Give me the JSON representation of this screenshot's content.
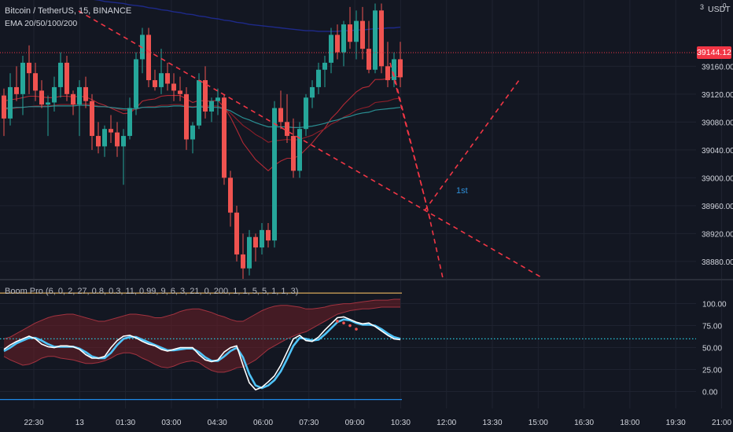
{
  "header": {
    "symbol_line": "Bitcoin / TetherUS, 15, BINANCE",
    "indicator_line": "EMA 20/50/100/200",
    "oscillator_line": "Boom Pro (6, 0, 2, 27, 0.8, 0.3, 11, 0.99, 9, 6, 3, 21, 0, 200, 1, 1, 5, 5, 1, 1, 3)"
  },
  "price_axis": {
    "unit": "USDT",
    "unit_sup": "0",
    "top_label": "3",
    "current_price": "39144.12",
    "current_price_color": "#f23645"
  },
  "annotation": {
    "label": "1st",
    "color": "#2f8fd8"
  },
  "colors": {
    "background": "#131722",
    "up": "#26a69a",
    "down": "#ef5350",
    "drawing": "#f23645",
    "ema200": "#1e2a8a",
    "osc_fast": "#ffffff",
    "osc_slow": "#4fc3f7",
    "dotted_level": "#26c6da",
    "upper_band": "#d8a85a",
    "lower_band": "#1e88e5"
  },
  "chart_data": [
    {
      "type": "candlestick",
      "title": "Bitcoin / TetherUS, 15, BINANCE",
      "ylabel": "USDT",
      "y_ticks": [
        39160,
        39120,
        39080,
        39040,
        39000,
        38960,
        38920,
        38880
      ],
      "ylim": [
        38855,
        39255
      ],
      "x_ticks": [
        "22:30",
        "13",
        "01:30",
        "03:00",
        "04:30",
        "06:00",
        "07:30",
        "09:00",
        "10:30",
        "12:00",
        "13:30",
        "15:00",
        "16:30",
        "18:00",
        "19:30",
        "21:00"
      ],
      "current_price": 39144.12,
      "grid": true,
      "candles": [
        [
          39118,
          39128,
          39060,
          39085
        ],
        [
          39085,
          39150,
          39075,
          39130
        ],
        [
          39130,
          39160,
          39110,
          39120
        ],
        [
          39120,
          39175,
          39090,
          39165
        ],
        [
          39165,
          39190,
          39120,
          39150
        ],
        [
          39150,
          39165,
          39110,
          39125
        ],
        [
          39125,
          39140,
          39100,
          39105
        ],
        [
          39105,
          39118,
          39060,
          39108
        ],
        [
          39108,
          39145,
          39095,
          39130
        ],
        [
          39130,
          39180,
          39115,
          39165
        ],
        [
          39165,
          39175,
          39110,
          39120
        ],
        [
          39120,
          39125,
          39090,
          39105
        ],
        [
          39105,
          39140,
          39060,
          39130
        ],
        [
          39130,
          39145,
          39100,
          39110
        ],
        [
          39110,
          39120,
          39040,
          39060
        ],
        [
          39060,
          39080,
          39035,
          39045
        ],
        [
          39045,
          39075,
          39030,
          39070
        ],
        [
          39070,
          39090,
          39050,
          39065
        ],
        [
          39065,
          39080,
          39030,
          39045
        ],
        [
          39045,
          39070,
          38990,
          39060
        ],
        [
          39060,
          39115,
          39055,
          39100
        ],
        [
          39100,
          39180,
          39090,
          39170
        ],
        [
          39170,
          39215,
          39150,
          39205
        ],
        [
          39205,
          39215,
          39130,
          39140
        ],
        [
          39140,
          39155,
          39125,
          39130
        ],
        [
          39130,
          39185,
          39120,
          39150
        ],
        [
          39150,
          39165,
          39125,
          39135
        ],
        [
          39135,
          39150,
          39110,
          39125
        ],
        [
          39125,
          39145,
          39110,
          39120
        ],
        [
          39120,
          39130,
          39040,
          39055
        ],
        [
          39055,
          39080,
          39035,
          39075
        ],
        [
          39075,
          39150,
          39070,
          39140
        ],
        [
          39140,
          39160,
          39085,
          39095
        ],
        [
          39095,
          39115,
          39080,
          39110
        ],
        [
          39110,
          39128,
          39090,
          39115
        ],
        [
          39115,
          39120,
          38990,
          39000
        ],
        [
          39000,
          39010,
          38930,
          38950
        ],
        [
          38950,
          38960,
          38880,
          38890
        ],
        [
          38890,
          38920,
          38855,
          38870
        ],
        [
          38870,
          38925,
          38860,
          38915
        ],
        [
          38915,
          38920,
          38880,
          38900
        ],
        [
          38900,
          38935,
          38890,
          38925
        ],
        [
          38925,
          38935,
          38900,
          38910
        ],
        [
          38910,
          39110,
          38900,
          39100
        ],
        [
          39100,
          39125,
          39070,
          39080
        ],
        [
          39080,
          39120,
          39050,
          39060
        ],
        [
          39060,
          39085,
          39000,
          39010
        ],
        [
          39010,
          39080,
          39000,
          39070
        ],
        [
          39070,
          39120,
          39060,
          39115
        ],
        [
          39115,
          39140,
          39100,
          39130
        ],
        [
          39130,
          39165,
          39120,
          39155
        ],
        [
          39155,
          39175,
          39130,
          39165
        ],
        [
          39165,
          39215,
          39150,
          39205
        ],
        [
          39205,
          39220,
          39170,
          39180
        ],
        [
          39180,
          39225,
          39160,
          39220
        ],
        [
          39220,
          39245,
          39185,
          39195
        ],
        [
          39195,
          39240,
          39170,
          39225
        ],
        [
          39225,
          39245,
          39170,
          39185
        ],
        [
          39185,
          39225,
          39150,
          39155
        ],
        [
          39155,
          39250,
          39150,
          39240
        ],
        [
          39240,
          39250,
          39150,
          39160
        ],
        [
          39160,
          39195,
          39130,
          39140
        ],
        [
          39140,
          39180,
          39130,
          39170
        ],
        [
          39170,
          39195,
          39130,
          39144.12
        ]
      ],
      "series": [
        {
          "name": "EMA 20",
          "values": [
            39110,
            39112,
            39113,
            39115,
            39117,
            39117,
            39116,
            39115,
            39115,
            39117,
            39117,
            39116,
            39117,
            39116,
            39112,
            39107,
            39104,
            39100,
            39096,
            39092,
            39093,
            39100,
            39110,
            39112,
            39113,
            39117,
            39118,
            39118,
            39118,
            39113,
            39108,
            39111,
            39110,
            39110,
            39111,
            39101,
            39087,
            39069,
            39050,
            39038,
            39026,
            39018,
            39010,
            39018,
            39024,
            39028,
            39028,
            39032,
            39041,
            39050,
            39061,
            39071,
            39085,
            39094,
            39105,
            39114,
            39123,
            39129,
            39131,
            39141,
            39141,
            39142,
            39145,
            39145
          ]
        },
        {
          "name": "EMA 50",
          "values": [
            39098,
            39099,
            39100,
            39101,
            39102,
            39103,
            39103,
            39103,
            39104,
            39105,
            39105,
            39105,
            39106,
            39106,
            39105,
            39103,
            39102,
            39101,
            39099,
            39097,
            39097,
            39098,
            39101,
            39102,
            39102,
            39104,
            39104,
            39105,
            39105,
            39103,
            39102,
            39103,
            39103,
            39103,
            39103,
            39099,
            39093,
            39084,
            39075,
            39069,
            39062,
            39057,
            39051,
            39053,
            39054,
            39055,
            39054,
            39055,
            39058,
            39061,
            39066,
            39070,
            39077,
            39081,
            39087,
            39091,
            39097,
            39100,
            39102,
            39108,
            39109,
            39110,
            39113,
            39114
          ]
        },
        {
          "name": "EMA 100",
          "values": [
            39100,
            39100,
            39101,
            39101,
            39102,
            39102,
            39102,
            39102,
            39103,
            39103,
            39103,
            39103,
            39104,
            39104,
            39103,
            39102,
            39102,
            39101,
            39100,
            39099,
            39099,
            39099,
            39101,
            39101,
            39101,
            39102,
            39102,
            39103,
            39103,
            39102,
            39101,
            39102,
            39101,
            39101,
            39101,
            39099,
            39096,
            39091,
            39086,
            39083,
            39079,
            39076,
            39073,
            39073,
            39073,
            39073,
            39072,
            39072,
            39073,
            39074,
            39076,
            39078,
            39081,
            39083,
            39086,
            39088,
            39091,
            39093,
            39094,
            39097,
            39098,
            39099,
            39100,
            39101
          ]
        },
        {
          "name": "EMA 200",
          "values": [
            39270,
            39269,
            39268,
            39267,
            39266,
            39265,
            39264,
            39263,
            39262,
            39261,
            39260,
            39259,
            39258,
            39257,
            39256,
            39255,
            39253,
            39252,
            39251,
            39250,
            39248,
            39247,
            39246,
            39244,
            39243,
            39241,
            39240,
            39238,
            39237,
            39235,
            39234,
            39232,
            39231,
            39229,
            39228,
            39226,
            39225,
            39223,
            39222,
            39220,
            39219,
            39218,
            39217,
            39216,
            39215,
            39214,
            39213,
            39212,
            39211,
            39211,
            39210,
            39210,
            39210,
            39210,
            39211,
            39211,
            39212,
            39212,
            39213,
            39214,
            39214,
            39215,
            39215,
            39216
          ]
        }
      ]
    },
    {
      "type": "line",
      "title": "Boom Pro (6, 0, 2, 27, 0.8, 0.3, 11, 0.99, 9, 6, 3, 21, 0, 200, 1, 1, 5, 5, 1, 1, 3)",
      "y_ticks": [
        100,
        75,
        50,
        25,
        0
      ],
      "ylim": [
        -12,
        113
      ],
      "levels": [
        112,
        60,
        -9
      ],
      "series": [
        {
          "name": "fast",
          "values": [
            48,
            53,
            57,
            60,
            63,
            60,
            54,
            51,
            50,
            52,
            52,
            51,
            48,
            42,
            38,
            38,
            40,
            50,
            58,
            63,
            64,
            61,
            57,
            54,
            52,
            48,
            46,
            48,
            50,
            50,
            50,
            42,
            36,
            34,
            36,
            45,
            50,
            52,
            30,
            10,
            2,
            5,
            11,
            18,
            30,
            45,
            60,
            64,
            58,
            57,
            62,
            70,
            77,
            84,
            85,
            82,
            79,
            77,
            78,
            74,
            69,
            64,
            60,
            59
          ]
        },
        {
          "name": "slow",
          "values": [
            46,
            50,
            55,
            58,
            61,
            61,
            58,
            54,
            51,
            51,
            51,
            51,
            49,
            45,
            40,
            38,
            38,
            44,
            53,
            60,
            62,
            62,
            59,
            56,
            53,
            50,
            47,
            47,
            48,
            49,
            49,
            45,
            39,
            35,
            35,
            40,
            46,
            50,
            39,
            20,
            7,
            4,
            7,
            13,
            23,
            37,
            52,
            61,
            60,
            58,
            59,
            65,
            72,
            79,
            82,
            81,
            78,
            76,
            76,
            75,
            71,
            66,
            62,
            60
          ]
        },
        {
          "name": "upper_band",
          "values": [
            60,
            62,
            66,
            70,
            74,
            78,
            81,
            84,
            86,
            87,
            88,
            88,
            86,
            84,
            82,
            80,
            80,
            82,
            84,
            86,
            88,
            88,
            87,
            86,
            84,
            84,
            86,
            88,
            91,
            93,
            94,
            94,
            92,
            90,
            87,
            85,
            82,
            80,
            80,
            84,
            88,
            92,
            95,
            97,
            98,
            98,
            97,
            96,
            94,
            94,
            95,
            96,
            98,
            99,
            100,
            100,
            101,
            102,
            103,
            104,
            104,
            104,
            105,
            105
          ]
        },
        {
          "name": "lower_band",
          "values": [
            40,
            36,
            33,
            30,
            31,
            34,
            38,
            40,
            40,
            38,
            37,
            36,
            34,
            32,
            32,
            33,
            35,
            38,
            42,
            44,
            44,
            42,
            38,
            35,
            31,
            28,
            27,
            29,
            32,
            34,
            35,
            33,
            28,
            24,
            22,
            22,
            24,
            27,
            28,
            32,
            36,
            42,
            48,
            52,
            56,
            60,
            63,
            66,
            68,
            72,
            76,
            80,
            84,
            88,
            90,
            92,
            93,
            94,
            94,
            95,
            96,
            96,
            96,
            96
          ]
        },
        {
          "name": "red_dots",
          "values": [
            null,
            null,
            null,
            null,
            null,
            null,
            null,
            null,
            null,
            null,
            null,
            null,
            null,
            null,
            null,
            null,
            null,
            null,
            null,
            null,
            null,
            null,
            null,
            null,
            null,
            null,
            null,
            null,
            null,
            null,
            null,
            null,
            null,
            null,
            null,
            null,
            null,
            null,
            null,
            null,
            null,
            null,
            null,
            null,
            null,
            null,
            null,
            null,
            null,
            null,
            null,
            null,
            null,
            80,
            78,
            75,
            71,
            null,
            null,
            null,
            null,
            null,
            null,
            null
          ]
        }
      ]
    }
  ]
}
